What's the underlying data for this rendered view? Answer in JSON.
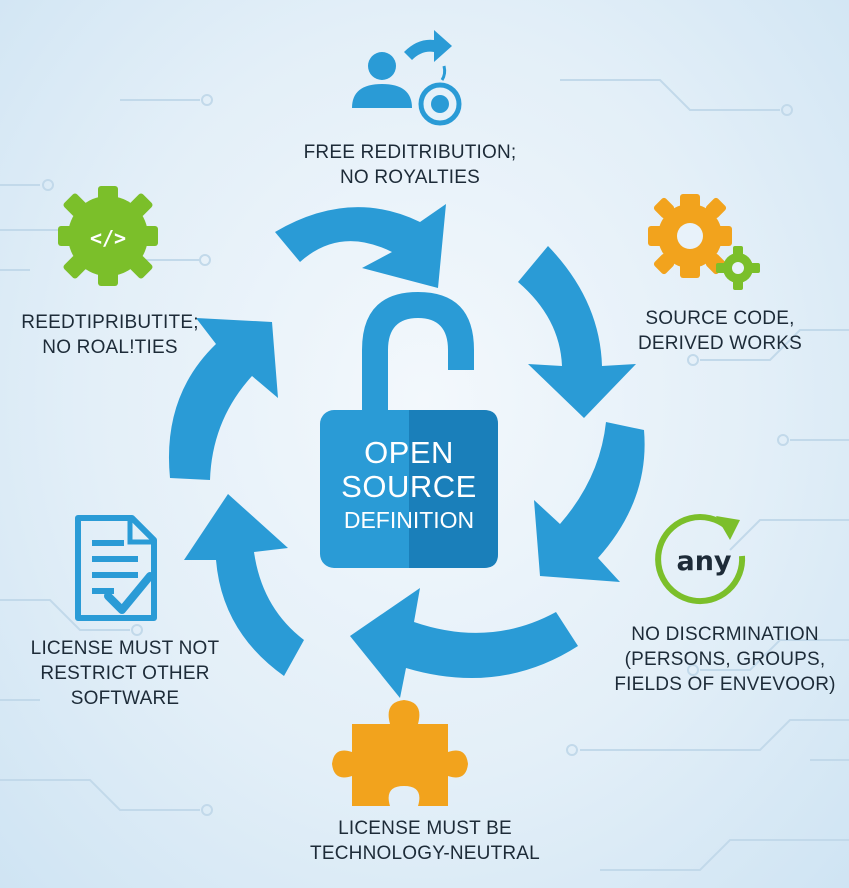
{
  "center": {
    "line1": "OPEN",
    "line2": "SOURCE",
    "line3": "DEFINITION"
  },
  "items": [
    {
      "lines": [
        "FREE REDITRIBUTION;",
        "NO ROYALTIES"
      ],
      "icon": "person-arrow-target-icon"
    },
    {
      "lines": [
        "SOURCE CODE,",
        "DERIVED WORKS"
      ],
      "icon": "gears-icon"
    },
    {
      "lines": [
        "NO DISCRMINATION",
        "(PERSONS, GROUPS,",
        "FIELDS OF ENVEVOOR)"
      ],
      "icon": "any-cycle-icon",
      "icon_text": "any"
    },
    {
      "lines": [
        "LICENSE MUST BE",
        "TECHNOLOGY-NEUTRAL"
      ],
      "icon": "puzzle-piece-icon"
    },
    {
      "lines": [
        "LICENSE MUST NOT",
        "RESTRICT OTHER",
        "SOFTWARE"
      ],
      "icon": "document-check-icon"
    },
    {
      "lines": [
        "REEDTIPRIBUTITE;",
        "NO ROAL!TIES"
      ],
      "icon": "code-gear-icon",
      "icon_text": "</>"
    }
  ],
  "colors": {
    "blue": "#2a9bd6",
    "dark_blue": "#1a7fba",
    "orange": "#f2a31d",
    "green": "#7bbf2a",
    "text": "#1d2b38"
  }
}
